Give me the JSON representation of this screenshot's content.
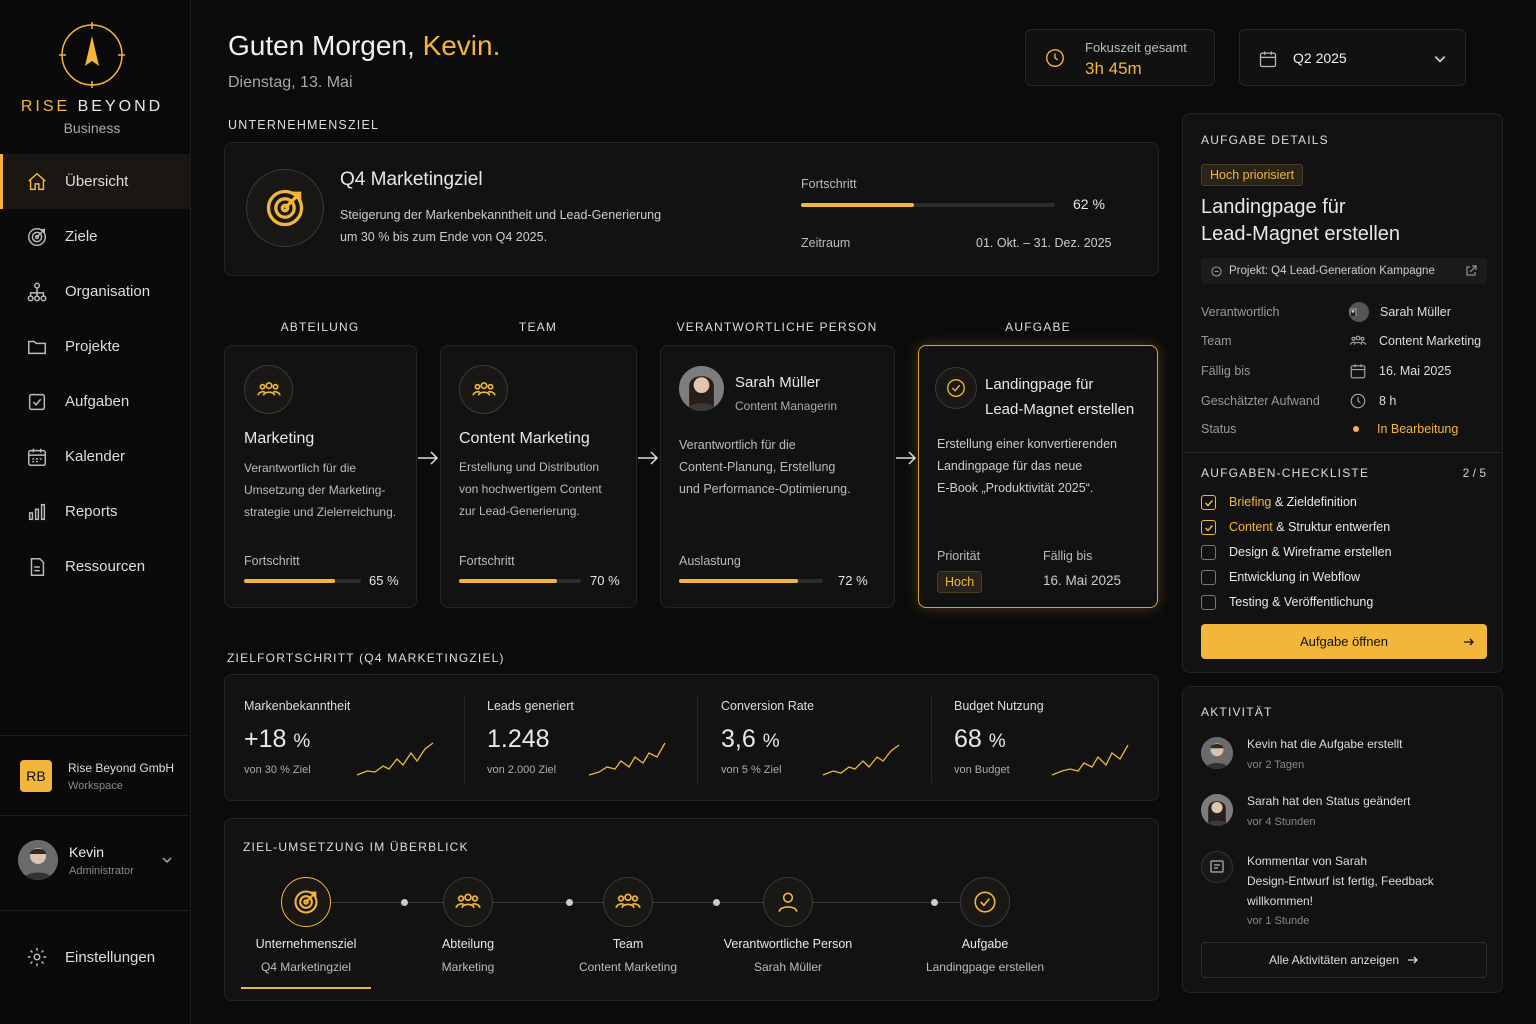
{
  "brand": {
    "name_a": "RISE ",
    "name_b": "BEYOND",
    "sub": "Business"
  },
  "nav": [
    {
      "label": "Übersicht",
      "icon": "home-icon",
      "active": true
    },
    {
      "label": "Ziele",
      "icon": "target-icon"
    },
    {
      "label": "Organisation",
      "icon": "org-chart-icon"
    },
    {
      "label": "Projekte",
      "icon": "folder-icon"
    },
    {
      "label": "Aufgaben",
      "icon": "checkbox-icon"
    },
    {
      "label": "Kalender",
      "icon": "calendar-icon"
    },
    {
      "label": "Reports",
      "icon": "bar-chart-icon"
    },
    {
      "label": "Ressourcen",
      "icon": "document-icon"
    }
  ],
  "workspace": {
    "badge": "RB",
    "name": "Rise Beyond GmbH",
    "sub": "Workspace"
  },
  "user": {
    "name": "Kevin",
    "role": "Administrator"
  },
  "settings_label": "Einstellungen",
  "header": {
    "greeting": "Guten Morgen, ",
    "name": "Kevin.",
    "date": "Dienstag, 13. Mai"
  },
  "focus": {
    "label": "Fokuszeit gesamt",
    "value": "3h 45m"
  },
  "period": {
    "value": "Q2 2025"
  },
  "goal": {
    "section": "UNTERNEHMENSZIEL",
    "title": "Q4 Marketingziel",
    "desc1": "Steigerung der Markenbekanntheit und Lead-Generierung",
    "desc2": "um 30 % bis zum Ende von Q4 2025.",
    "progress_label": "Fortschritt",
    "progress": 62,
    "progress_text": "62 %",
    "period_label": "Zeitraum",
    "period": "01. Okt. – 31. Dez. 2025"
  },
  "flow": {
    "headers": [
      "ABTEILUNG",
      "TEAM",
      "VERANTWORTLICHE PERSON",
      "AUFGABE"
    ],
    "dept": {
      "title": "Marketing",
      "desc": [
        "Verantwortlich für die",
        "Umsetzung der Marketing-",
        "strategie und Zielerreichung."
      ],
      "label": "Fortschritt",
      "value": 65,
      "text": "65 %"
    },
    "team": {
      "title": "Content Marketing",
      "desc": [
        "Erstellung und Distribution",
        "von hochwertigem Content",
        "zur Lead-Generierung."
      ],
      "label": "Fortschritt",
      "value": 70,
      "text": "70 %"
    },
    "person": {
      "name": "Sarah Müller",
      "role": "Content Managerin",
      "desc": [
        "Verantwortlich für die",
        "Content-Planung, Erstellung",
        "und Performance-Optimierung."
      ],
      "label": "Auslastung",
      "value": 72,
      "text": "72 %"
    },
    "task": {
      "title1": "Landingpage für",
      "title2": "Lead-Magnet erstellen",
      "desc": [
        "Erstellung einer konvertierenden",
        "Landingpage für das neue",
        "E-Book „Produktivität 2025“."
      ],
      "prio_label": "Priorität",
      "prio": "Hoch",
      "due_label": "Fällig bis",
      "due": "16. Mai 2025"
    }
  },
  "kpi": {
    "section": "ZIELFORTSCHRITT (Q4 MARKETINGZIEL)",
    "items": [
      {
        "label": "Markenbekanntheit",
        "value": "+18",
        "unit": "%",
        "sub": "von 30 % Ziel"
      },
      {
        "label": "Leads generiert",
        "value": "1.248",
        "unit": "",
        "sub": "von 2.000 Ziel"
      },
      {
        "label": "Conversion Rate",
        "value": "3,6",
        "unit": "%",
        "sub": "von 5 % Ziel"
      },
      {
        "label": "Budget Nutzung",
        "value": "68",
        "unit": "%",
        "sub": "von Budget"
      }
    ]
  },
  "overview": {
    "section": "ZIEL-UMSETZUNG IM ÜBERBLICK",
    "steps": [
      {
        "title": "Unternehmensziel",
        "sub": "Q4 Marketingziel",
        "icon": "target-icon"
      },
      {
        "title": "Abteilung",
        "sub": "Marketing",
        "icon": "group-icon"
      },
      {
        "title": "Team",
        "sub": "Content Marketing",
        "icon": "group-icon"
      },
      {
        "title": "Verantwortliche Person",
        "sub": "Sarah Müller",
        "icon": "user-icon"
      },
      {
        "title": "Aufgabe",
        "sub": "Landingpage erstellen",
        "icon": "check-circle-icon"
      }
    ]
  },
  "details": {
    "section": "AUFGABE DETAILS",
    "badge": "Hoch priorisiert",
    "title1": "Landingpage für",
    "title2": "Lead-Magnet erstellen",
    "project": "Projekt: Q4 Lead-Generation Kampagne",
    "rows": [
      {
        "k": "Verantwortlich",
        "v": "Sarah Müller"
      },
      {
        "k": "Team",
        "v": "Content Marketing"
      },
      {
        "k": "Fällig bis",
        "v": "16. Mai 2025"
      },
      {
        "k": "Geschätzter Aufwand",
        "v": "8 h"
      },
      {
        "k": "Status",
        "v": "In Bearbeitung"
      }
    ],
    "checklist_title": "AUFGABEN-CHECKLISTE",
    "checklist_count": "2 / 5",
    "checklist": [
      {
        "a": "Briefing",
        "b": " & Zieldefinition",
        "done": true
      },
      {
        "a": "Content",
        "b": " & Struktur entwerfen",
        "done": true
      },
      {
        "a": "",
        "b": "Design & Wireframe erstellen",
        "done": false
      },
      {
        "a": "",
        "b": "Entwicklung in Webflow",
        "done": false
      },
      {
        "a": "",
        "b": "Testing & Veröffentlichung",
        "done": false
      }
    ],
    "open_button": "Aufgabe öffnen"
  },
  "activity": {
    "section": "AKTIVITÄT",
    "items": [
      {
        "text": "Kevin hat die Aufgabe erstellt",
        "time": "vor 2 Tagen"
      },
      {
        "text": "Sarah hat den Status geändert",
        "time": "vor 4 Stunden"
      },
      {
        "text": "Kommentar von Sarah",
        "text2": "Design-Entwurf ist fertig, Feedback",
        "text3": "willkommen!",
        "time": "vor 1 Stunde"
      }
    ],
    "all_button": "Alle Aktivitäten anzeigen"
  }
}
